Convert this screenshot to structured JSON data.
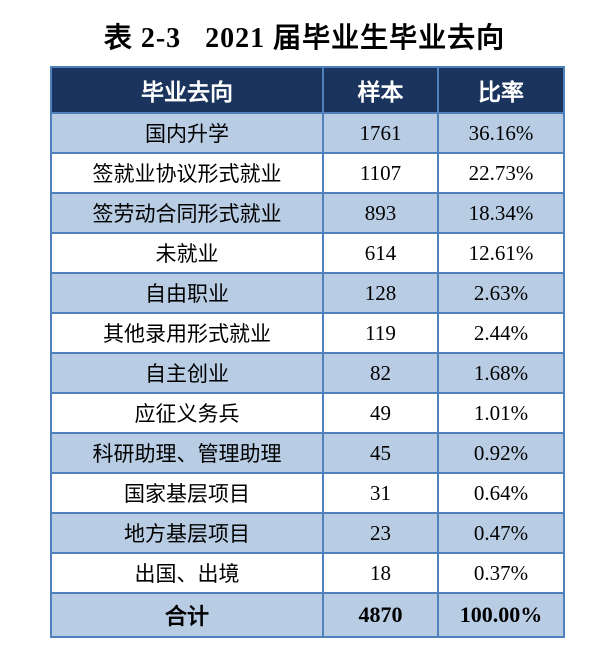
{
  "title": "表 2-3   2021 届毕业生毕业去向",
  "table": {
    "headers": [
      "毕业去向",
      "样本",
      "比率"
    ],
    "rows": [
      {
        "label": "国内升学",
        "sample": "1761",
        "ratio": "36.16%"
      },
      {
        "label": "签就业协议形式就业",
        "sample": "1107",
        "ratio": "22.73%"
      },
      {
        "label": "签劳动合同形式就业",
        "sample": "893",
        "ratio": "18.34%"
      },
      {
        "label": "未就业",
        "sample": "614",
        "ratio": "12.61%"
      },
      {
        "label": "自由职业",
        "sample": "128",
        "ratio": "2.63%"
      },
      {
        "label": "其他录用形式就业",
        "sample": "119",
        "ratio": "2.44%"
      },
      {
        "label": "自主创业",
        "sample": "82",
        "ratio": "1.68%"
      },
      {
        "label": "应征义务兵",
        "sample": "49",
        "ratio": "1.01%"
      },
      {
        "label": "科研助理、管理助理",
        "sample": "45",
        "ratio": "0.92%"
      },
      {
        "label": "国家基层项目",
        "sample": "31",
        "ratio": "0.64%"
      },
      {
        "label": "地方基层项目",
        "sample": "23",
        "ratio": "0.47%"
      },
      {
        "label": "出国、出境",
        "sample": "18",
        "ratio": "0.37%"
      }
    ],
    "total": {
      "label": "合计",
      "sample": "4870",
      "ratio": "100.00%"
    },
    "colors": {
      "header_bg": "#1B345E",
      "header_text": "#FFFFFF",
      "row_alt_bg": "#B8CCE4",
      "row_bg": "#FFFFFF",
      "total_bg": "#B8CCE4",
      "border": "#4F81BD",
      "text": "#000000"
    }
  }
}
